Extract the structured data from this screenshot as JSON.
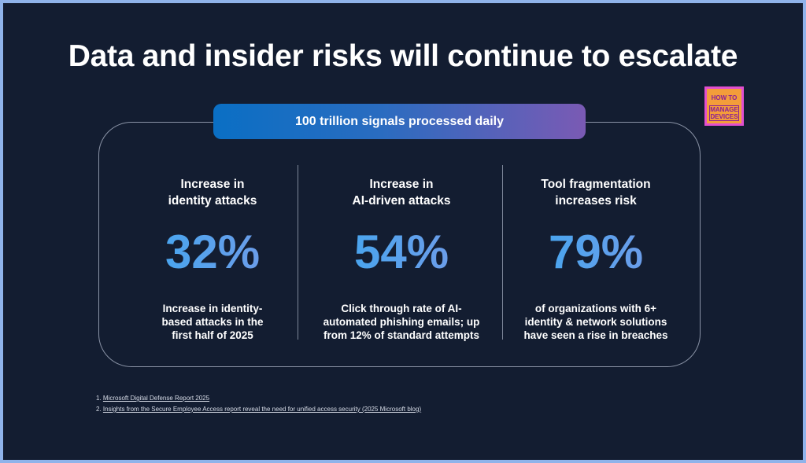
{
  "title": "Data and insider risks will continue to escalate",
  "banner": "100 trillion signals processed daily",
  "stats": [
    {
      "heading": [
        "Increase in",
        "identity attacks"
      ],
      "value": "32%",
      "description": [
        "Increase in identity-",
        "based attacks in the",
        "first half of 2025"
      ]
    },
    {
      "heading": [
        "Increase in",
        "AI-driven attacks"
      ],
      "value": "54%",
      "description": [
        "Click through rate of AI-",
        "automated phishing emails; up",
        "from 12% of standard attempts"
      ]
    },
    {
      "heading": [
        "Tool fragmentation",
        "increases risk"
      ],
      "value": "79%",
      "description": [
        "of organizations with 6+",
        "identity & network solutions",
        "have seen a rise in breaches"
      ]
    }
  ],
  "logo": {
    "line1": "HOW TO",
    "line2": "MANAGE",
    "line3": "DEVICES"
  },
  "footnotes": [
    {
      "num": "1.",
      "text": "Microsoft Digital Defense Report 2025"
    },
    {
      "num": "2.",
      "text": "Insights from the Secure Employee Access report reveal the need for unified access security (2025 Microsoft blog)"
    }
  ],
  "colors": {
    "background": "#131d31",
    "border": "#8fb3ea",
    "accent_start": "#0a6fc4",
    "accent_end": "#7a5ab4"
  }
}
